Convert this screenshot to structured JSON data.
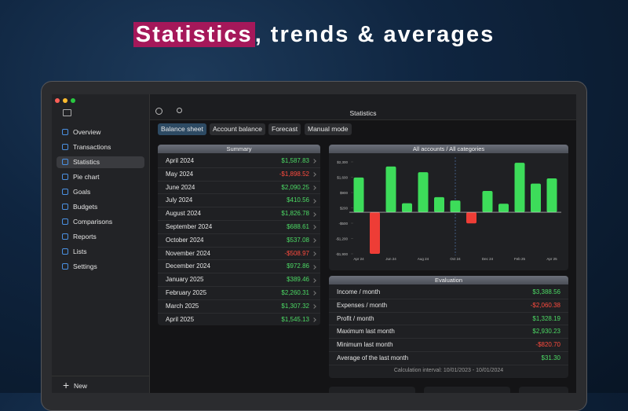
{
  "headline": {
    "highlight": "Statistics",
    "rest": ", trends & averages"
  },
  "sidebar": {
    "items": [
      "Overview",
      "Transactions",
      "Statistics",
      "Pie chart",
      "Goals",
      "Budgets",
      "Comparisons",
      "Reports",
      "Lists",
      "Settings"
    ],
    "selected": 2,
    "new_button": "New"
  },
  "toolbar": {
    "title": "Statistics"
  },
  "tabs": {
    "items": [
      "Balance sheet",
      "Account balance",
      "Forecast",
      "Manual mode"
    ],
    "selected": 0
  },
  "summary": {
    "title": "Summary",
    "rows": [
      [
        "April 2024",
        "$1,587.83"
      ],
      [
        "May 2024",
        "-$1,898.52"
      ],
      [
        "June 2024",
        "$2,090.25"
      ],
      [
        "July 2024",
        "$410.56"
      ],
      [
        "August 2024",
        "$1,826.78"
      ],
      [
        "September 2024",
        "$688.61"
      ],
      [
        "October 2024",
        "$537.08"
      ],
      [
        "November 2024",
        "-$508.97"
      ],
      [
        "December 2024",
        "$972.86"
      ],
      [
        "January 2025",
        "$389.46"
      ],
      [
        "February 2025",
        "$2,260.31"
      ],
      [
        "March 2025",
        "$1,307.32"
      ],
      [
        "April 2025",
        "$1,545.13"
      ]
    ]
  },
  "chart_data": {
    "type": "bar",
    "title": "All accounts / All categories",
    "categories": [
      "Apr 24",
      null,
      "Jun 24",
      null,
      "Aug 24",
      null,
      "Oct 24",
      null,
      "Dec 24",
      null,
      "Feb 25",
      null,
      "Apr 25"
    ],
    "values": [
      1587.83,
      -1898.52,
      2090.25,
      410.56,
      1826.78,
      688.61,
      537.08,
      -508.97,
      972.86,
      389.46,
      2260.31,
      1307.32,
      1545.13
    ],
    "colors": {
      "positive": "#3ddc5a",
      "negative": "#ee3d36"
    },
    "ylim": [
      -1900,
      2300
    ],
    "yticks": [
      {
        "value": 2300,
        "label": "$2,300"
      },
      {
        "value": 1600,
        "label": "$1,600"
      },
      {
        "value": 900,
        "label": "$900"
      },
      {
        "value": 200,
        "label": "$200"
      },
      {
        "value": -500,
        "label": "-$500"
      },
      {
        "value": -1200,
        "label": "-$1,200"
      },
      {
        "value": -1900,
        "label": "-$1,900"
      }
    ]
  },
  "evaluation": {
    "title": "Evaluation",
    "rows": [
      [
        "Income / month",
        "$3,388.56"
      ],
      [
        "Expenses / month",
        "-$2,060.38"
      ],
      [
        "Profit / month",
        "$1,328.19"
      ],
      [
        "Maximum last month",
        "$2,930.23"
      ],
      [
        "Minimum last month",
        "-$820.70"
      ],
      [
        "Average of the last month",
        "$31.30"
      ]
    ],
    "footer": "Calculation interval: 10/01/2023 - 10/01/2024"
  }
}
